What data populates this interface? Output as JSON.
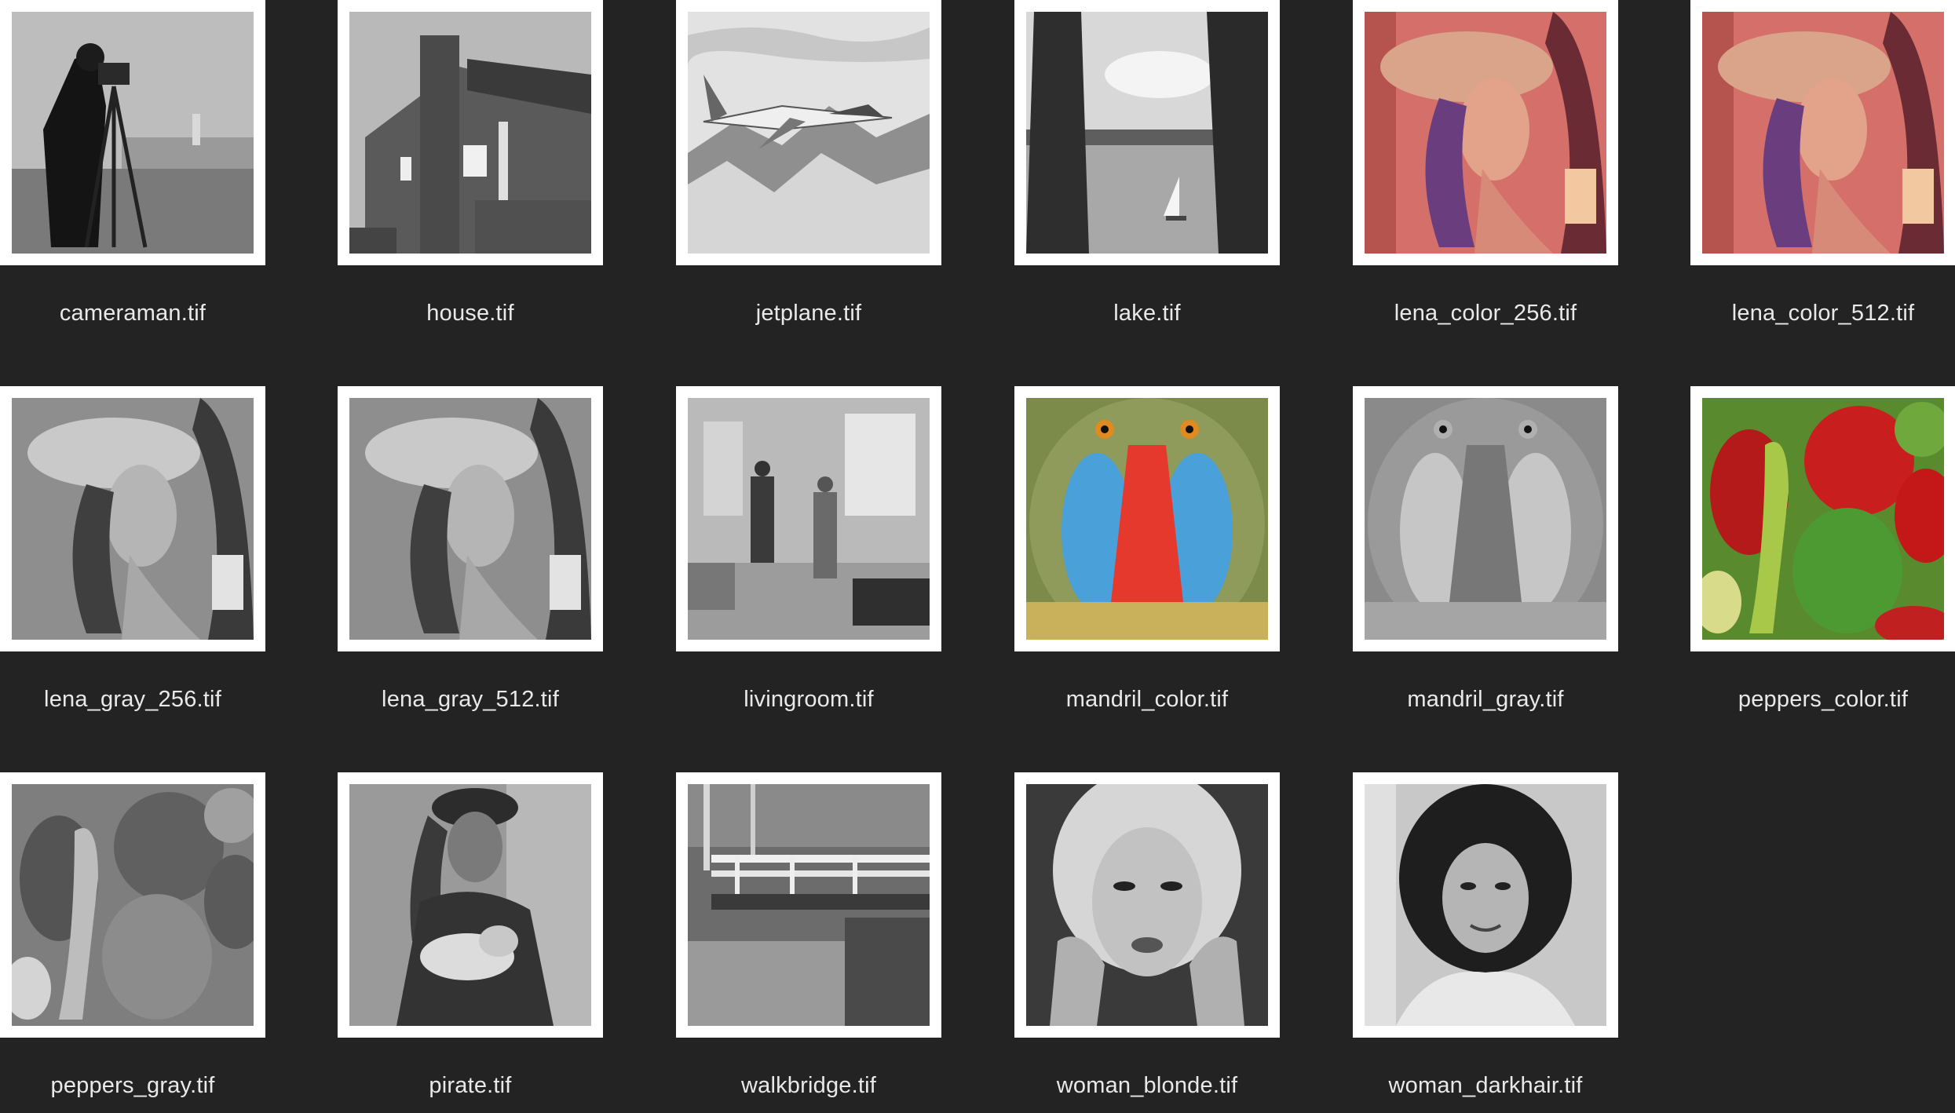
{
  "window": {
    "view": "icon-grid"
  },
  "files": [
    {
      "name": "cameraman.tif",
      "thumbnail": "grayscale photo of a man with a camera on a tripod",
      "icon": "image-file-icon"
    },
    {
      "name": "house.tif",
      "thumbnail": "grayscale photo of a brick house",
      "icon": "image-file-icon"
    },
    {
      "name": "jetplane.tif",
      "thumbnail": "grayscale photo of a jet plane over mountains",
      "icon": "image-file-icon"
    },
    {
      "name": "lake.tif",
      "thumbnail": "grayscale photo of a lake with a sailboat and trees",
      "icon": "image-file-icon"
    },
    {
      "name": "lena_color_256.tif",
      "thumbnail": "color portrait of a woman with a hat",
      "icon": "image-file-icon"
    },
    {
      "name": "lena_color_512.tif",
      "thumbnail": "color portrait of a woman with a hat",
      "icon": "image-file-icon"
    },
    {
      "name": "lena_gray_256.tif",
      "thumbnail": "grayscale portrait of a woman with a hat",
      "icon": "image-file-icon"
    },
    {
      "name": "lena_gray_512.tif",
      "thumbnail": "grayscale portrait of a woman with a hat",
      "icon": "image-file-icon"
    },
    {
      "name": "livingroom.tif",
      "thumbnail": "grayscale photo of a living room with two people",
      "icon": "image-file-icon"
    },
    {
      "name": "mandril_color.tif",
      "thumbnail": "color photo of a mandrill face",
      "icon": "image-file-icon"
    },
    {
      "name": "mandril_gray.tif",
      "thumbnail": "grayscale photo of a mandrill face",
      "icon": "image-file-icon"
    },
    {
      "name": "peppers_color.tif",
      "thumbnail": "color photo of red and green peppers",
      "icon": "image-file-icon"
    },
    {
      "name": "peppers_gray.tif",
      "thumbnail": "grayscale photo of peppers",
      "icon": "image-file-icon"
    },
    {
      "name": "pirate.tif",
      "thumbnail": "grayscale photo of a man in pirate costume",
      "icon": "image-file-icon"
    },
    {
      "name": "walkbridge.tif",
      "thumbnail": "grayscale photo of a footbridge over a stream",
      "icon": "image-file-icon"
    },
    {
      "name": "woman_blonde.tif",
      "thumbnail": "grayscale portrait of a blonde woman",
      "icon": "image-file-icon"
    },
    {
      "name": "woman_darkhair.tif",
      "thumbnail": "grayscale portrait of a dark-haired woman",
      "icon": "image-file-icon"
    }
  ],
  "colors": {
    "background": "#232323",
    "thumbnail_frame": "#ffffff",
    "label_text": "#e9e9e9"
  }
}
